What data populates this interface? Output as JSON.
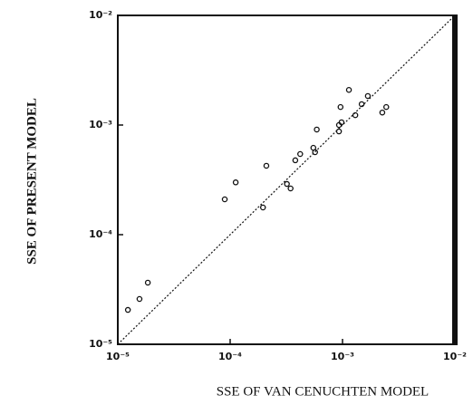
{
  "chart_data": {
    "type": "scatter",
    "xlabel": "SSE OF VAN CENUCHTEN MODEL",
    "ylabel": "SSE OF PRESENT MODEL",
    "log_x": true,
    "log_y": true,
    "color": "#111111",
    "xlim": [
      1e-05,
      0.01
    ],
    "ylim": [
      1e-05,
      0.01
    ],
    "xticks": [
      {
        "value": 1e-05,
        "label": "10⁻⁵"
      },
      {
        "value": 0.0001,
        "label": "10⁻⁴"
      },
      {
        "value": 0.001,
        "label": "10⁻³"
      },
      {
        "value": 0.01,
        "label": "10⁻²"
      }
    ],
    "yticks": [
      {
        "value": 1e-05,
        "label": "10⁻⁵"
      },
      {
        "value": 0.0001,
        "label": "10⁻⁴"
      },
      {
        "value": 0.001,
        "label": "10⁻³"
      },
      {
        "value": 0.01,
        "label": "10⁻²"
      }
    ],
    "x": [
      1.23e-05,
      1.56e-05,
      1.85e-05,
      8.95e-05,
      0.000112,
      0.000196,
      0.00021,
      0.00032,
      0.000345,
      0.00038,
      0.00042,
      0.00055,
      0.00057,
      0.00059,
      0.00093,
      0.00093,
      0.00098,
      0.00096,
      0.00114,
      0.0013,
      0.00148,
      0.00168,
      0.00226,
      0.00245
    ],
    "values": [
      2.06e-05,
      2.59e-05,
      3.65e-05,
      0.00021,
      0.0003,
      0.000177,
      0.000425,
      0.00029,
      0.000264,
      0.000477,
      0.000544,
      0.00062,
      0.000565,
      0.00091,
      0.000875,
      0.001,
      0.00106,
      0.00146,
      0.00209,
      0.00123,
      0.00155,
      0.00184,
      0.0013,
      0.00146
    ]
  }
}
